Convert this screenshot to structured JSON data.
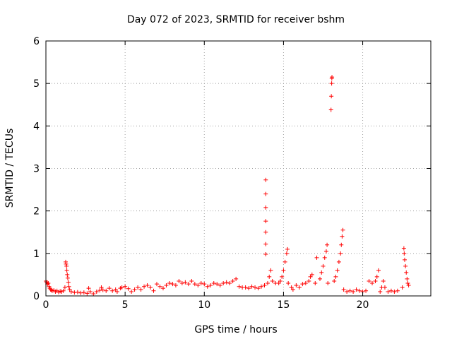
{
  "chart_data": {
    "type": "scatter",
    "title": "Day 072 of 2023, SRMTID for receiver bshm",
    "xlabel": "GPS time / hours",
    "ylabel": "SRMTID / TECUs",
    "xlim": [
      0,
      24.3
    ],
    "ylim": [
      0,
      6
    ],
    "xticks": [
      0,
      5,
      10,
      15,
      20
    ],
    "xtick_labels": [
      "0",
      "5",
      "10",
      "15",
      "20"
    ],
    "yticks": [
      0,
      1,
      2,
      3,
      4,
      5,
      6
    ],
    "ytick_labels": [
      "0",
      "1",
      "2",
      "3",
      "4",
      "5",
      "6"
    ],
    "grid": true,
    "marker": "+",
    "marker_color": "#ff0000",
    "series": [
      {
        "name": "SRMTID",
        "points": [
          [
            0.0,
            0.35
          ],
          [
            0.05,
            0.32
          ],
          [
            0.1,
            0.28
          ],
          [
            0.15,
            0.3
          ],
          [
            0.2,
            0.22
          ],
          [
            0.25,
            0.18
          ],
          [
            0.3,
            0.15
          ],
          [
            0.35,
            0.14
          ],
          [
            0.4,
            0.12
          ],
          [
            0.5,
            0.13
          ],
          [
            0.6,
            0.1
          ],
          [
            0.7,
            0.12
          ],
          [
            0.8,
            0.09
          ],
          [
            0.9,
            0.11
          ],
          [
            1.0,
            0.1
          ],
          [
            1.1,
            0.12
          ],
          [
            1.2,
            0.2
          ],
          [
            1.25,
            0.8
          ],
          [
            1.27,
            0.75
          ],
          [
            1.3,
            0.7
          ],
          [
            1.32,
            0.6
          ],
          [
            1.35,
            0.5
          ],
          [
            1.38,
            0.42
          ],
          [
            1.42,
            0.32
          ],
          [
            1.45,
            0.22
          ],
          [
            1.5,
            0.15
          ],
          [
            1.6,
            0.1
          ],
          [
            1.8,
            0.08
          ],
          [
            2.0,
            0.09
          ],
          [
            2.2,
            0.07
          ],
          [
            2.4,
            0.08
          ],
          [
            2.6,
            0.06
          ],
          [
            2.7,
            0.18
          ],
          [
            2.8,
            0.1
          ],
          [
            3.0,
            0.05
          ],
          [
            3.2,
            0.1
          ],
          [
            3.4,
            0.13
          ],
          [
            3.5,
            0.2
          ],
          [
            3.6,
            0.14
          ],
          [
            3.8,
            0.12
          ],
          [
            4.0,
            0.18
          ],
          [
            4.2,
            0.12
          ],
          [
            4.4,
            0.15
          ],
          [
            4.5,
            0.1
          ],
          [
            4.7,
            0.18
          ],
          [
            4.8,
            0.2
          ],
          [
            5.0,
            0.22
          ],
          [
            5.2,
            0.17
          ],
          [
            5.4,
            0.1
          ],
          [
            5.6,
            0.15
          ],
          [
            5.8,
            0.2
          ],
          [
            6.0,
            0.15
          ],
          [
            6.2,
            0.22
          ],
          [
            6.4,
            0.25
          ],
          [
            6.6,
            0.2
          ],
          [
            6.8,
            0.12
          ],
          [
            7.0,
            0.28
          ],
          [
            7.2,
            0.22
          ],
          [
            7.4,
            0.18
          ],
          [
            7.6,
            0.25
          ],
          [
            7.8,
            0.3
          ],
          [
            8.0,
            0.28
          ],
          [
            8.2,
            0.25
          ],
          [
            8.4,
            0.35
          ],
          [
            8.6,
            0.3
          ],
          [
            8.8,
            0.32
          ],
          [
            9.0,
            0.28
          ],
          [
            9.2,
            0.35
          ],
          [
            9.4,
            0.28
          ],
          [
            9.6,
            0.25
          ],
          [
            9.8,
            0.3
          ],
          [
            10.0,
            0.28
          ],
          [
            10.2,
            0.22
          ],
          [
            10.4,
            0.25
          ],
          [
            10.6,
            0.3
          ],
          [
            10.8,
            0.28
          ],
          [
            11.0,
            0.25
          ],
          [
            11.2,
            0.3
          ],
          [
            11.4,
            0.32
          ],
          [
            11.6,
            0.3
          ],
          [
            11.8,
            0.35
          ],
          [
            12.0,
            0.4
          ],
          [
            12.2,
            0.22
          ],
          [
            12.4,
            0.2
          ],
          [
            12.6,
            0.2
          ],
          [
            12.8,
            0.18
          ],
          [
            13.0,
            0.22
          ],
          [
            13.2,
            0.2
          ],
          [
            13.4,
            0.18
          ],
          [
            13.6,
            0.22
          ],
          [
            13.8,
            0.25
          ],
          [
            13.88,
            0.98
          ],
          [
            13.88,
            1.22
          ],
          [
            13.88,
            1.5
          ],
          [
            13.88,
            1.76
          ],
          [
            13.88,
            2.08
          ],
          [
            13.88,
            2.4
          ],
          [
            13.88,
            2.73
          ],
          [
            14.0,
            0.3
          ],
          [
            14.1,
            0.45
          ],
          [
            14.2,
            0.6
          ],
          [
            14.3,
            0.35
          ],
          [
            14.5,
            0.3
          ],
          [
            14.7,
            0.3
          ],
          [
            14.8,
            0.35
          ],
          [
            14.9,
            0.45
          ],
          [
            15.0,
            0.6
          ],
          [
            15.1,
            0.8
          ],
          [
            15.2,
            1.0
          ],
          [
            15.25,
            1.1
          ],
          [
            15.3,
            0.3
          ],
          [
            15.5,
            0.2
          ],
          [
            15.6,
            0.15
          ],
          [
            15.8,
            0.25
          ],
          [
            16.0,
            0.2
          ],
          [
            16.2,
            0.28
          ],
          [
            16.4,
            0.3
          ],
          [
            16.6,
            0.35
          ],
          [
            16.7,
            0.45
          ],
          [
            16.8,
            0.5
          ],
          [
            17.0,
            0.3
          ],
          [
            17.1,
            0.9
          ],
          [
            17.3,
            0.4
          ],
          [
            17.4,
            0.55
          ],
          [
            17.5,
            0.7
          ],
          [
            17.6,
            0.9
          ],
          [
            17.7,
            1.05
          ],
          [
            17.75,
            1.2
          ],
          [
            17.8,
            0.3
          ],
          [
            18.0,
            4.38
          ],
          [
            18.02,
            4.7
          ],
          [
            18.04,
            5.0
          ],
          [
            18.05,
            5.12
          ],
          [
            18.06,
            5.15
          ],
          [
            18.2,
            0.35
          ],
          [
            18.3,
            0.45
          ],
          [
            18.4,
            0.6
          ],
          [
            18.5,
            0.8
          ],
          [
            18.6,
            1.0
          ],
          [
            18.65,
            1.2
          ],
          [
            18.7,
            1.4
          ],
          [
            18.75,
            1.55
          ],
          [
            18.8,
            0.15
          ],
          [
            19.0,
            0.1
          ],
          [
            19.2,
            0.12
          ],
          [
            19.4,
            0.1
          ],
          [
            19.6,
            0.15
          ],
          [
            19.8,
            0.12
          ],
          [
            20.0,
            0.1
          ],
          [
            20.2,
            0.12
          ],
          [
            20.4,
            0.35
          ],
          [
            20.6,
            0.3
          ],
          [
            20.8,
            0.35
          ],
          [
            20.9,
            0.45
          ],
          [
            21.0,
            0.6
          ],
          [
            21.1,
            0.1
          ],
          [
            21.2,
            0.2
          ],
          [
            21.3,
            0.35
          ],
          [
            21.4,
            0.2
          ],
          [
            21.6,
            0.1
          ],
          [
            21.8,
            0.12
          ],
          [
            22.0,
            0.1
          ],
          [
            22.2,
            0.12
          ],
          [
            22.5,
            0.2
          ],
          [
            22.6,
            1.12
          ],
          [
            22.62,
            1.0
          ],
          [
            22.65,
            0.85
          ],
          [
            22.7,
            0.7
          ],
          [
            22.75,
            0.55
          ],
          [
            22.8,
            0.4
          ],
          [
            22.85,
            0.3
          ],
          [
            22.9,
            0.25
          ]
        ]
      }
    ]
  }
}
